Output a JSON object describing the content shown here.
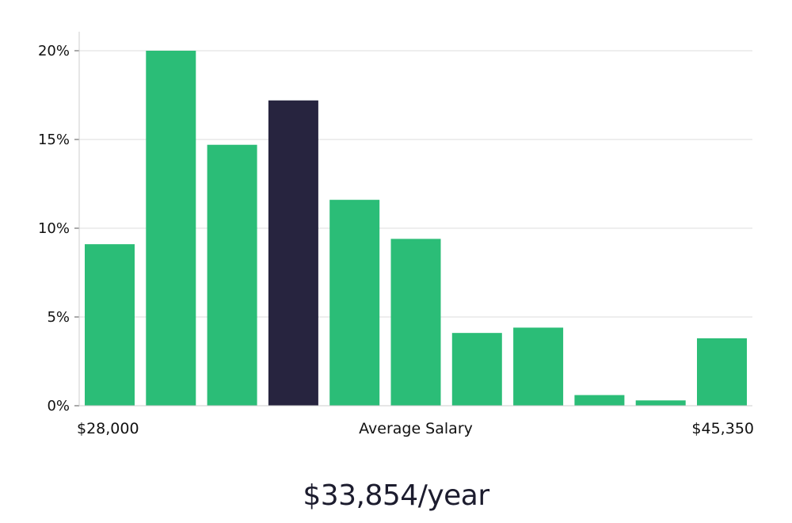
{
  "chart_data": {
    "type": "bar",
    "title": "",
    "xlabel": "Average Salary",
    "ylabel": "",
    "x_range_labels": {
      "min": "$28,000",
      "max": "$45,350"
    },
    "yticks": [
      "0%",
      "5%",
      "10%",
      "15%",
      "20%"
    ],
    "ylim": [
      0,
      21
    ],
    "grid": true,
    "values": [
      9.1,
      20.0,
      14.7,
      17.2,
      11.6,
      9.4,
      4.1,
      4.4,
      0.6,
      0.3,
      3.8
    ],
    "highlight_index": 3,
    "colors": {
      "bar": "#2bbd77",
      "highlight": "#27243f",
      "grid": "#dddddd",
      "axis": "#cccccc"
    }
  },
  "salary_display": "$33,854/year"
}
